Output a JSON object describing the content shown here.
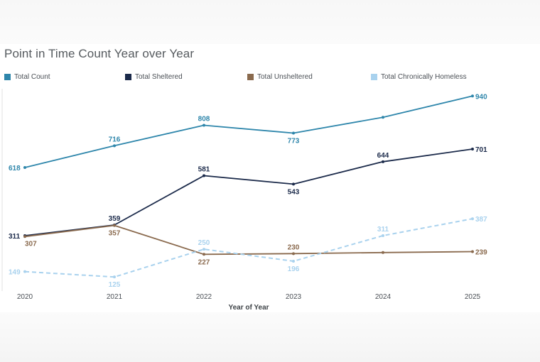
{
  "chart_data": {
    "type": "line",
    "title": "Point in Time Count Year over Year",
    "xlabel": "Year of Year",
    "ylabel": "",
    "x": [
      "2020",
      "2021",
      "2022",
      "2023",
      "2024",
      "2025"
    ],
    "ylim": [
      100,
      960
    ],
    "grid": false,
    "legend_position": "top",
    "series": [
      {
        "name": "Total Count",
        "values": [
          618,
          716,
          808,
          773,
          844,
          940
        ],
        "color": "#2e86ab",
        "dashed": false,
        "labels": [
          "618",
          "716",
          "808",
          "773",
          "",
          "940"
        ]
      },
      {
        "name": "Total Sheltered",
        "values": [
          311,
          359,
          581,
          543,
          644,
          701
        ],
        "color": "#1b2a4a",
        "dashed": false,
        "labels": [
          "311",
          "359",
          "581",
          "543",
          "644",
          "701"
        ]
      },
      {
        "name": "Total Unsheltered",
        "values": [
          307,
          357,
          227,
          230,
          235,
          239
        ],
        "color": "#8a6a4e",
        "dashed": false,
        "labels": [
          "307",
          "357",
          "227",
          "230",
          "",
          "239"
        ]
      },
      {
        "name": "Total Chronically Homeless",
        "values": [
          149,
          125,
          250,
          196,
          311,
          387
        ],
        "color": "#a9d2ee",
        "dashed": true,
        "labels": [
          "149",
          "125",
          "250",
          "196",
          "311",
          "387"
        ]
      }
    ]
  }
}
